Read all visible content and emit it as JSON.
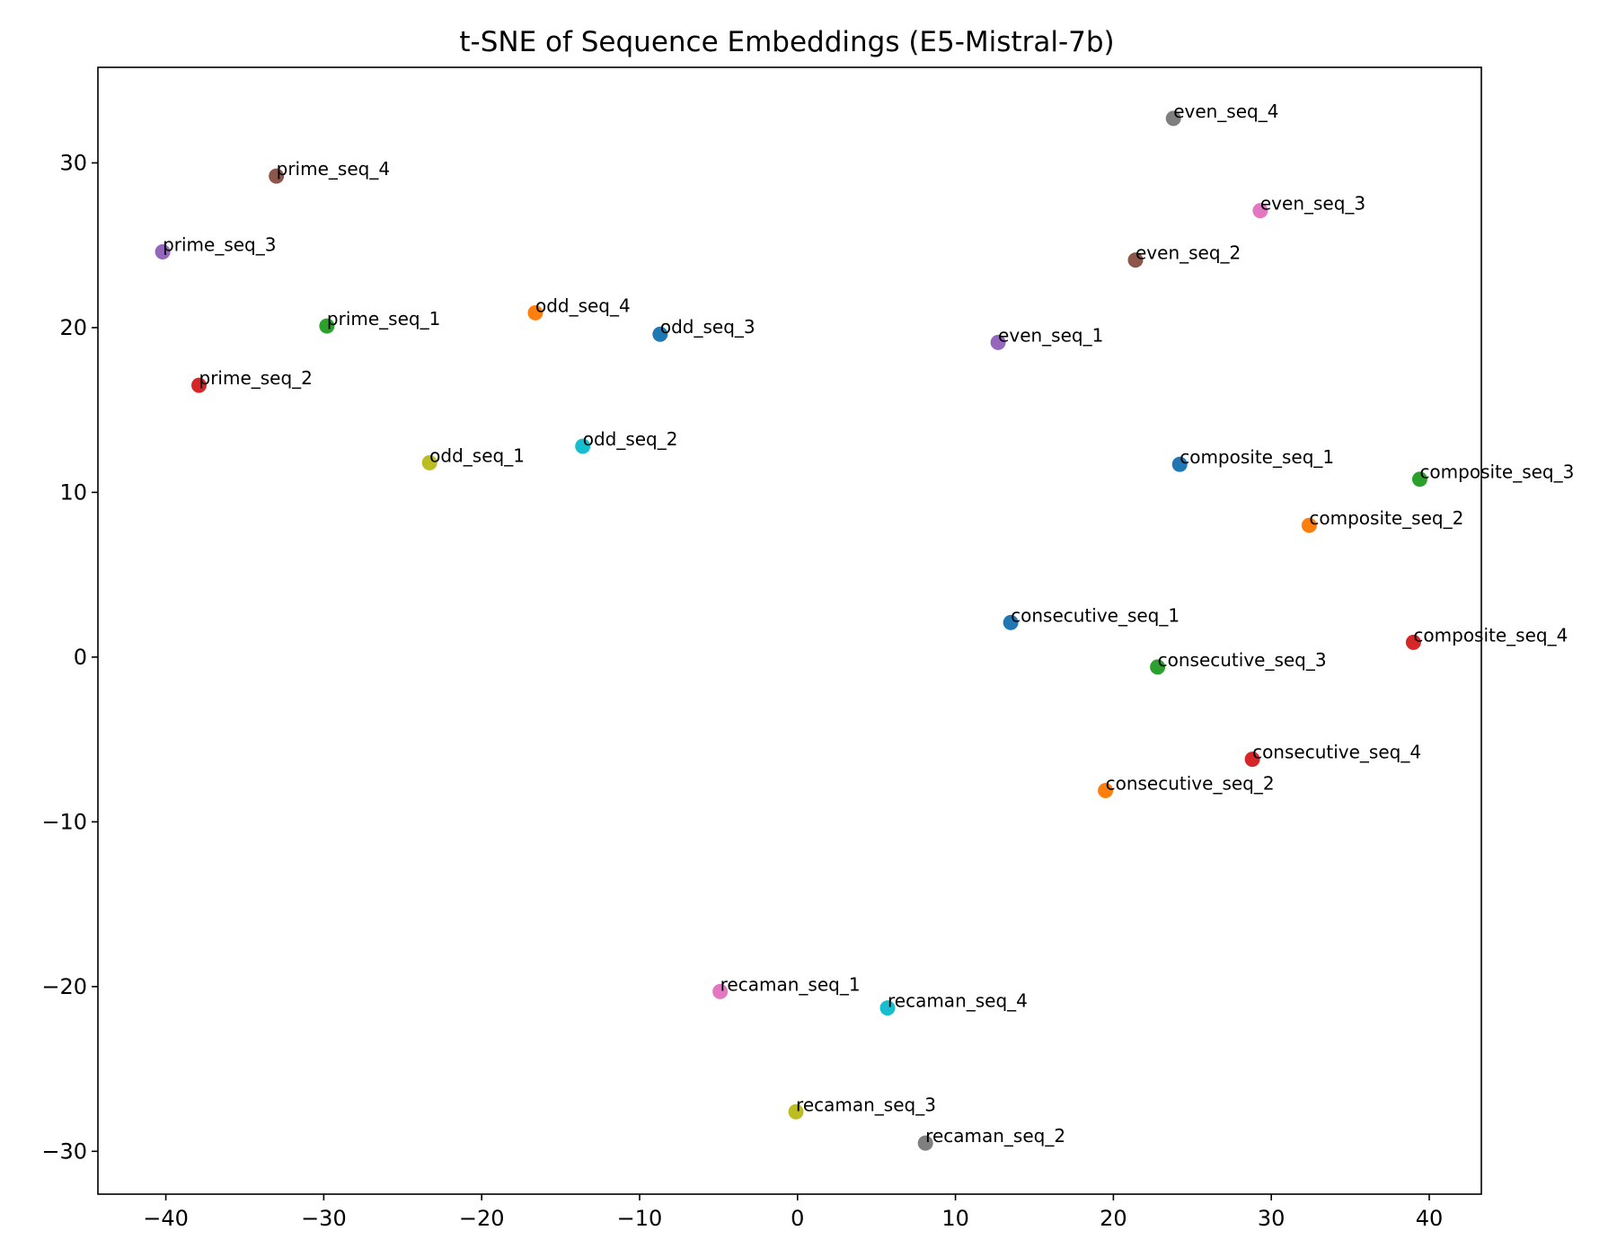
{
  "chart_data": {
    "type": "scatter",
    "title": "t-SNE of Sequence Embeddings (E5-Mistral-7b)",
    "xlabel": "",
    "ylabel": "",
    "xlim": [
      -44.3,
      43.3
    ],
    "ylim": [
      -32.6,
      35.8
    ],
    "xticks": [
      -40,
      -30,
      -20,
      -10,
      0,
      10,
      20,
      30,
      40
    ],
    "yticks": [
      -30,
      -20,
      -10,
      0,
      10,
      20,
      30
    ],
    "xtick_labels": [
      "−40",
      "−30",
      "−20",
      "−10",
      "0",
      "10",
      "20",
      "30",
      "40"
    ],
    "ytick_labels": [
      "−30",
      "−20",
      "−10",
      "0",
      "10",
      "20",
      "30"
    ],
    "grid": false,
    "legend": "none",
    "points": [
      {
        "label": "prime_seq_1",
        "x": -29.8,
        "y": 20.1,
        "color": "#2ca02c"
      },
      {
        "label": "prime_seq_2",
        "x": -37.9,
        "y": 16.5,
        "color": "#d62728"
      },
      {
        "label": "prime_seq_3",
        "x": -40.2,
        "y": 24.6,
        "color": "#9467bd"
      },
      {
        "label": "prime_seq_4",
        "x": -33.0,
        "y": 29.2,
        "color": "#8c564b"
      },
      {
        "label": "odd_seq_1",
        "x": -23.3,
        "y": 11.8,
        "color": "#bcbd22"
      },
      {
        "label": "odd_seq_2",
        "x": -13.6,
        "y": 12.8,
        "color": "#17becf"
      },
      {
        "label": "odd_seq_3",
        "x": -8.7,
        "y": 19.6,
        "color": "#1f77b4"
      },
      {
        "label": "odd_seq_4",
        "x": -16.6,
        "y": 20.9,
        "color": "#ff7f0e"
      },
      {
        "label": "even_seq_1",
        "x": 12.7,
        "y": 19.1,
        "color": "#9467bd"
      },
      {
        "label": "even_seq_2",
        "x": 21.4,
        "y": 24.1,
        "color": "#8c564b"
      },
      {
        "label": "even_seq_3",
        "x": 29.3,
        "y": 27.1,
        "color": "#e377c2"
      },
      {
        "label": "even_seq_4",
        "x": 23.8,
        "y": 32.7,
        "color": "#7f7f7f"
      },
      {
        "label": "composite_seq_1",
        "x": 24.2,
        "y": 11.7,
        "color": "#1f77b4"
      },
      {
        "label": "composite_seq_2",
        "x": 32.4,
        "y": 8.0,
        "color": "#ff7f0e"
      },
      {
        "label": "composite_seq_3",
        "x": 39.4,
        "y": 10.8,
        "color": "#2ca02c"
      },
      {
        "label": "composite_seq_4",
        "x": 39.0,
        "y": 0.9,
        "color": "#d62728"
      },
      {
        "label": "consecutive_seq_1",
        "x": 13.5,
        "y": 2.1,
        "color": "#1f77b4"
      },
      {
        "label": "consecutive_seq_2",
        "x": 19.5,
        "y": -8.1,
        "color": "#ff7f0e"
      },
      {
        "label": "consecutive_seq_3",
        "x": 22.8,
        "y": -0.6,
        "color": "#2ca02c"
      },
      {
        "label": "consecutive_seq_4",
        "x": 28.8,
        "y": -6.2,
        "color": "#d62728"
      },
      {
        "label": "recaman_seq_1",
        "x": -4.9,
        "y": -20.3,
        "color": "#e377c2"
      },
      {
        "label": "recaman_seq_2",
        "x": 8.1,
        "y": -29.5,
        "color": "#7f7f7f"
      },
      {
        "label": "recaman_seq_3",
        "x": -0.1,
        "y": -27.6,
        "color": "#bcbd22"
      },
      {
        "label": "recaman_seq_4",
        "x": 5.7,
        "y": -21.3,
        "color": "#17becf"
      }
    ]
  }
}
